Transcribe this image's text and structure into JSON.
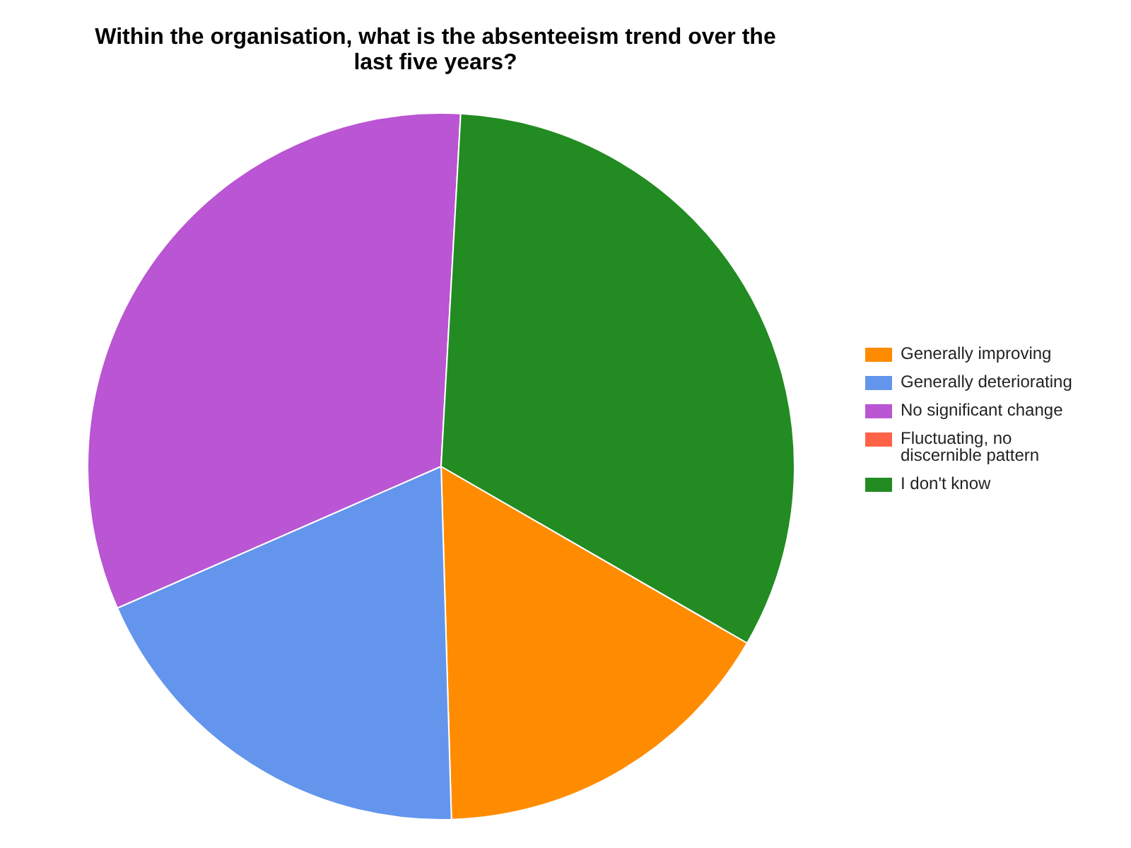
{
  "chart_data": {
    "type": "pie",
    "title": "Within the organisation, what is the absenteeism trend over the last five years?",
    "categories": [
      "Generally improving",
      "Generally deteriorating",
      "No significant change",
      "Fluctuating, no discernible pattern",
      "I don't know"
    ],
    "values": [
      16.2,
      18.9,
      32.45,
      0,
      32.45
    ],
    "colors": [
      "#ff8c00",
      "#6495ed",
      "#ba55d3",
      "#ff6347",
      "#228b22"
    ],
    "legend": "right"
  }
}
